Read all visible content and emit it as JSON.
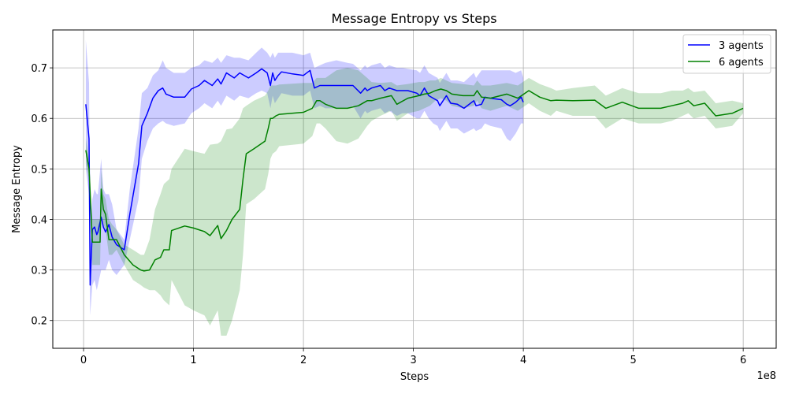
{
  "chart_data": {
    "type": "line",
    "title": "Message Entropy vs Steps",
    "xlabel": "Steps",
    "ylabel": "Message Entropy",
    "x_offset_label": "1e8",
    "xlim": [
      -0.28,
      6.3
    ],
    "ylim": [
      0.145,
      0.775
    ],
    "x_ticks": [
      0,
      1,
      2,
      3,
      4,
      5,
      6
    ],
    "x_tick_labels": [
      "0",
      "1",
      "2",
      "3",
      "4",
      "5",
      "6"
    ],
    "y_ticks": [
      0.2,
      0.3,
      0.4,
      0.5,
      0.6,
      0.7
    ],
    "y_tick_labels": [
      "0.2",
      "0.3",
      "0.4",
      "0.5",
      "0.6",
      "0.7"
    ],
    "grid": true,
    "legend_position": "top-right",
    "series": [
      {
        "name": "3 agents",
        "color": "#0000ff",
        "band_color": "#0000ff",
        "x": [
          0.02,
          0.05,
          0.06,
          0.08,
          0.1,
          0.12,
          0.13,
          0.16,
          0.18,
          0.2,
          0.23,
          0.26,
          0.3,
          0.37,
          0.42,
          0.5,
          0.53,
          0.58,
          0.63,
          0.68,
          0.72,
          0.75,
          0.82,
          0.92,
          0.98,
          1.05,
          1.1,
          1.17,
          1.22,
          1.25,
          1.3,
          1.37,
          1.42,
          1.5,
          1.57,
          1.62,
          1.67,
          1.7,
          1.72,
          1.74,
          1.77,
          1.8,
          1.9,
          2.0,
          2.06,
          2.1,
          2.15,
          2.2,
          2.3,
          2.4,
          2.45,
          2.52,
          2.56,
          2.58,
          2.62,
          2.7,
          2.74,
          2.78,
          2.85,
          2.9,
          2.95,
          3.03,
          3.06,
          3.1,
          3.14,
          3.18,
          3.22,
          3.24,
          3.3,
          3.34,
          3.4,
          3.46,
          3.55,
          3.57,
          3.62,
          3.65,
          3.7,
          3.8,
          3.85,
          3.88,
          3.93,
          3.98,
          4.0
        ],
        "y": [
          0.628,
          0.56,
          0.27,
          0.38,
          0.385,
          0.37,
          0.375,
          0.405,
          0.385,
          0.375,
          0.39,
          0.365,
          0.35,
          0.34,
          0.41,
          0.51,
          0.585,
          0.61,
          0.64,
          0.655,
          0.66,
          0.648,
          0.642,
          0.642,
          0.658,
          0.665,
          0.675,
          0.665,
          0.678,
          0.668,
          0.69,
          0.68,
          0.69,
          0.68,
          0.69,
          0.698,
          0.69,
          0.665,
          0.69,
          0.675,
          0.685,
          0.692,
          0.688,
          0.685,
          0.695,
          0.66,
          0.665,
          0.665,
          0.665,
          0.665,
          0.665,
          0.65,
          0.66,
          0.655,
          0.66,
          0.665,
          0.655,
          0.66,
          0.655,
          0.655,
          0.655,
          0.65,
          0.645,
          0.66,
          0.645,
          0.64,
          0.635,
          0.625,
          0.645,
          0.63,
          0.628,
          0.62,
          0.635,
          0.625,
          0.628,
          0.642,
          0.64,
          0.637,
          0.628,
          0.625,
          0.632,
          0.642,
          0.632
        ],
        "band_upper": [
          0.755,
          0.67,
          0.35,
          0.44,
          0.46,
          0.45,
          0.45,
          0.52,
          0.46,
          0.45,
          0.45,
          0.43,
          0.38,
          0.36,
          0.46,
          0.58,
          0.65,
          0.66,
          0.685,
          0.695,
          0.715,
          0.7,
          0.69,
          0.69,
          0.7,
          0.705,
          0.715,
          0.71,
          0.72,
          0.71,
          0.725,
          0.72,
          0.72,
          0.715,
          0.73,
          0.74,
          0.73,
          0.72,
          0.73,
          0.72,
          0.73,
          0.73,
          0.73,
          0.725,
          0.73,
          0.7,
          0.705,
          0.71,
          0.715,
          0.71,
          0.708,
          0.695,
          0.705,
          0.7,
          0.705,
          0.71,
          0.7,
          0.705,
          0.7,
          0.7,
          0.698,
          0.695,
          0.69,
          0.705,
          0.69,
          0.685,
          0.68,
          0.67,
          0.69,
          0.675,
          0.675,
          0.672,
          0.69,
          0.68,
          0.695,
          0.695,
          0.695,
          0.695,
          0.695,
          0.695,
          0.69,
          0.695,
          0.68
        ],
        "band_lower": [
          0.5,
          0.45,
          0.21,
          0.27,
          0.28,
          0.26,
          0.27,
          0.3,
          0.3,
          0.3,
          0.32,
          0.3,
          0.29,
          0.31,
          0.36,
          0.44,
          0.52,
          0.555,
          0.58,
          0.59,
          0.595,
          0.59,
          0.585,
          0.59,
          0.61,
          0.62,
          0.63,
          0.62,
          0.635,
          0.625,
          0.645,
          0.635,
          0.645,
          0.64,
          0.65,
          0.655,
          0.65,
          0.62,
          0.645,
          0.63,
          0.64,
          0.65,
          0.645,
          0.645,
          0.655,
          0.62,
          0.625,
          0.62,
          0.62,
          0.62,
          0.625,
          0.6,
          0.615,
          0.61,
          0.615,
          0.62,
          0.61,
          0.615,
          0.605,
          0.61,
          0.61,
          0.6,
          0.6,
          0.615,
          0.6,
          0.59,
          0.585,
          0.575,
          0.595,
          0.58,
          0.58,
          0.57,
          0.58,
          0.575,
          0.58,
          0.59,
          0.585,
          0.58,
          0.56,
          0.555,
          0.57,
          0.59,
          0.59
        ]
      },
      {
        "name": "6 agents",
        "color": "#008000",
        "band_color": "#008000",
        "x": [
          0.02,
          0.05,
          0.08,
          0.1,
          0.12,
          0.15,
          0.16,
          0.18,
          0.2,
          0.23,
          0.26,
          0.3,
          0.37,
          0.45,
          0.52,
          0.55,
          0.6,
          0.65,
          0.7,
          0.73,
          0.78,
          0.8,
          0.92,
          1.0,
          1.1,
          1.15,
          1.22,
          1.25,
          1.3,
          1.35,
          1.42,
          1.45,
          1.48,
          1.55,
          1.65,
          1.68,
          1.7,
          1.72,
          1.75,
          1.78,
          2.0,
          2.08,
          2.12,
          2.15,
          2.2,
          2.3,
          2.4,
          2.5,
          2.58,
          2.62,
          2.7,
          2.8,
          2.85,
          2.95,
          3.05,
          3.1,
          3.15,
          3.2,
          3.25,
          3.3,
          3.35,
          3.45,
          3.55,
          3.58,
          3.62,
          3.7,
          3.85,
          3.95,
          4.05,
          4.15,
          4.25,
          4.3,
          4.45,
          4.65,
          4.75,
          4.9,
          5.05,
          5.15,
          5.25,
          5.35,
          5.45,
          5.5,
          5.55,
          5.65,
          5.75,
          5.9,
          6.0
        ],
        "y": [
          0.537,
          0.5,
          0.355,
          0.355,
          0.355,
          0.355,
          0.46,
          0.42,
          0.41,
          0.36,
          0.36,
          0.36,
          0.33,
          0.31,
          0.3,
          0.298,
          0.3,
          0.32,
          0.325,
          0.34,
          0.34,
          0.378,
          0.387,
          0.383,
          0.376,
          0.368,
          0.388,
          0.362,
          0.378,
          0.4,
          0.42,
          0.48,
          0.53,
          0.54,
          0.555,
          0.58,
          0.6,
          0.6,
          0.605,
          0.608,
          0.612,
          0.62,
          0.635,
          0.635,
          0.628,
          0.62,
          0.62,
          0.625,
          0.635,
          0.635,
          0.64,
          0.645,
          0.628,
          0.64,
          0.645,
          0.648,
          0.65,
          0.655,
          0.658,
          0.655,
          0.648,
          0.645,
          0.645,
          0.655,
          0.642,
          0.64,
          0.648,
          0.64,
          0.655,
          0.642,
          0.635,
          0.636,
          0.635,
          0.636,
          0.62,
          0.632,
          0.62,
          0.62,
          0.62,
          0.625,
          0.63,
          0.635,
          0.625,
          0.63,
          0.605,
          0.61,
          0.62
        ],
        "band_upper": [
          0.56,
          0.52,
          0.4,
          0.4,
          0.4,
          0.4,
          0.5,
          0.45,
          0.44,
          0.4,
          0.39,
          0.38,
          0.35,
          0.34,
          0.33,
          0.33,
          0.36,
          0.42,
          0.45,
          0.47,
          0.48,
          0.5,
          0.54,
          0.535,
          0.53,
          0.548,
          0.55,
          0.555,
          0.578,
          0.58,
          0.6,
          0.62,
          0.625,
          0.635,
          0.645,
          0.655,
          0.665,
          0.665,
          0.665,
          0.667,
          0.67,
          0.67,
          0.68,
          0.68,
          0.68,
          0.695,
          0.7,
          0.695,
          0.68,
          0.672,
          0.67,
          0.672,
          0.665,
          0.668,
          0.672,
          0.672,
          0.675,
          0.675,
          0.68,
          0.675,
          0.67,
          0.668,
          0.665,
          0.675,
          0.665,
          0.665,
          0.67,
          0.665,
          0.68,
          0.668,
          0.66,
          0.655,
          0.66,
          0.665,
          0.645,
          0.66,
          0.65,
          0.65,
          0.65,
          0.655,
          0.655,
          0.66,
          0.652,
          0.655,
          0.63,
          0.635,
          0.63
        ],
        "band_lower": [
          0.51,
          0.48,
          0.31,
          0.31,
          0.31,
          0.31,
          0.42,
          0.39,
          0.38,
          0.33,
          0.33,
          0.34,
          0.31,
          0.28,
          0.27,
          0.265,
          0.26,
          0.26,
          0.25,
          0.24,
          0.23,
          0.28,
          0.23,
          0.22,
          0.21,
          0.19,
          0.22,
          0.17,
          0.17,
          0.2,
          0.26,
          0.33,
          0.43,
          0.44,
          0.46,
          0.49,
          0.52,
          0.53,
          0.535,
          0.545,
          0.55,
          0.565,
          0.59,
          0.59,
          0.58,
          0.555,
          0.55,
          0.56,
          0.585,
          0.595,
          0.605,
          0.615,
          0.595,
          0.61,
          0.615,
          0.62,
          0.625,
          0.635,
          0.64,
          0.635,
          0.625,
          0.62,
          0.625,
          0.635,
          0.62,
          0.615,
          0.625,
          0.615,
          0.63,
          0.615,
          0.605,
          0.615,
          0.605,
          0.605,
          0.58,
          0.6,
          0.59,
          0.59,
          0.59,
          0.595,
          0.605,
          0.61,
          0.6,
          0.605,
          0.58,
          0.585,
          0.61
        ]
      }
    ]
  }
}
